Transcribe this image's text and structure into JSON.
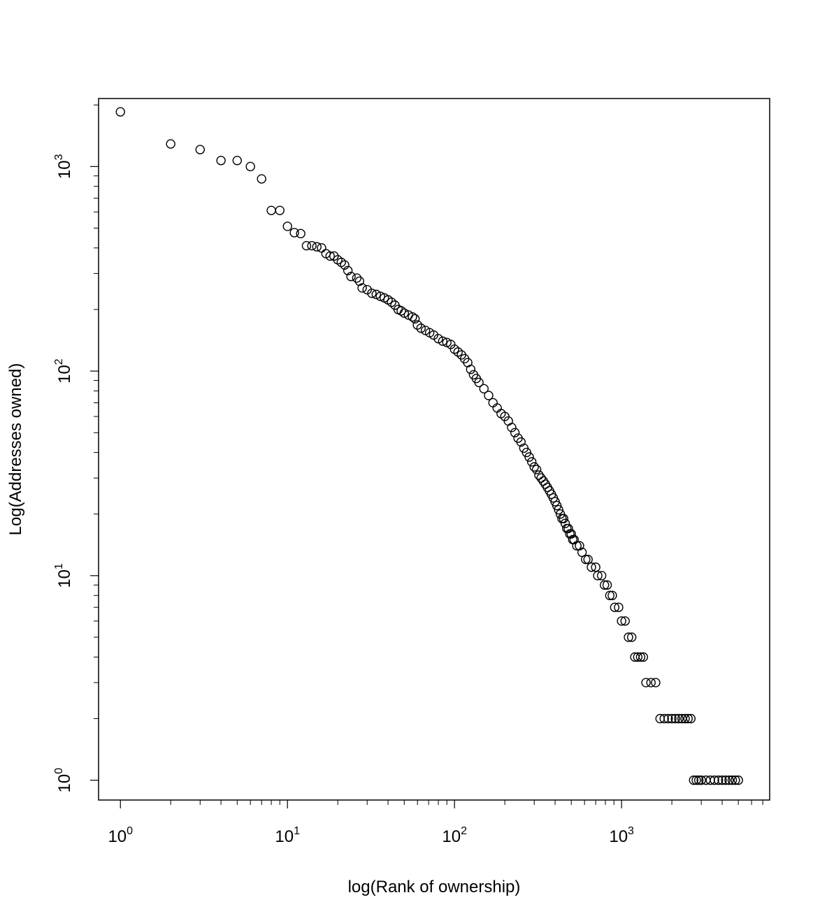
{
  "chart_data": {
    "type": "scatter",
    "title": "",
    "xlabel": "log(Rank of ownership)",
    "ylabel": "Log(Addresses owned)",
    "x_scale": "log10",
    "y_scale": "log10",
    "xlim": [
      0.74,
      7700
    ],
    "ylim": [
      0.8,
      2150
    ],
    "x_ticks": [
      {
        "base": "10",
        "exp": "0",
        "value": 1
      },
      {
        "base": "10",
        "exp": "1",
        "value": 10
      },
      {
        "base": "10",
        "exp": "2",
        "value": 100
      },
      {
        "base": "10",
        "exp": "3",
        "value": 1000
      }
    ],
    "x_minor_ticks": [
      2,
      3,
      4,
      5,
      6,
      7,
      8,
      9,
      20,
      30,
      40,
      50,
      60,
      70,
      80,
      90,
      200,
      300,
      400,
      500,
      600,
      700,
      800,
      900,
      2000,
      3000,
      4000,
      5000,
      6000,
      7000
    ],
    "y_ticks": [
      {
        "base": "10",
        "exp": "0",
        "value": 1
      },
      {
        "base": "10",
        "exp": "1",
        "value": 10
      },
      {
        "base": "10",
        "exp": "2",
        "value": 100
      },
      {
        "base": "10",
        "exp": "3",
        "value": 1000
      }
    ],
    "y_minor_ticks": [
      2,
      3,
      4,
      5,
      6,
      7,
      8,
      9,
      20,
      30,
      40,
      50,
      60,
      70,
      80,
      90,
      200,
      300,
      400,
      500,
      600,
      700,
      800,
      900,
      2000
    ],
    "marker": "open-circle",
    "grid": false,
    "points": [
      [
        1,
        1850
      ],
      [
        2,
        1290
      ],
      [
        3,
        1210
      ],
      [
        4,
        1070
      ],
      [
        5,
        1070
      ],
      [
        6,
        1000
      ],
      [
        7,
        870
      ],
      [
        8,
        610
      ],
      [
        9,
        610
      ],
      [
        10,
        510
      ],
      [
        11,
        475
      ],
      [
        12,
        470
      ],
      [
        13,
        410
      ],
      [
        14,
        410
      ],
      [
        15,
        405
      ],
      [
        16,
        400
      ],
      [
        17,
        375
      ],
      [
        18,
        365
      ],
      [
        19,
        365
      ],
      [
        20,
        350
      ],
      [
        21,
        340
      ],
      [
        22,
        330
      ],
      [
        23,
        310
      ],
      [
        24,
        290
      ],
      [
        26,
        285
      ],
      [
        27,
        275
      ],
      [
        28,
        255
      ],
      [
        30,
        250
      ],
      [
        32,
        240
      ],
      [
        34,
        237
      ],
      [
        36,
        232
      ],
      [
        38,
        228
      ],
      [
        40,
        223
      ],
      [
        42,
        217
      ],
      [
        44,
        210
      ],
      [
        46,
        200
      ],
      [
        48,
        197
      ],
      [
        50,
        192
      ],
      [
        53,
        188
      ],
      [
        56,
        184
      ],
      [
        58,
        180
      ],
      [
        60,
        168
      ],
      [
        63,
        162
      ],
      [
        67,
        158
      ],
      [
        71,
        154
      ],
      [
        75,
        150
      ],
      [
        80,
        144
      ],
      [
        85,
        140
      ],
      [
        90,
        138
      ],
      [
        95,
        135
      ],
      [
        100,
        128
      ],
      [
        105,
        124
      ],
      [
        110,
        120
      ],
      [
        115,
        115
      ],
      [
        120,
        110
      ],
      [
        125,
        102
      ],
      [
        130,
        96
      ],
      [
        135,
        92
      ],
      [
        140,
        88
      ],
      [
        150,
        82
      ],
      [
        160,
        76
      ],
      [
        170,
        70
      ],
      [
        180,
        66
      ],
      [
        190,
        62
      ],
      [
        200,
        60
      ],
      [
        210,
        57
      ],
      [
        220,
        53
      ],
      [
        230,
        50
      ],
      [
        240,
        47
      ],
      [
        250,
        45
      ],
      [
        260,
        42
      ],
      [
        270,
        40
      ],
      [
        280,
        38
      ],
      [
        290,
        36
      ],
      [
        300,
        34
      ],
      [
        310,
        33
      ],
      [
        320,
        31
      ],
      [
        330,
        30
      ],
      [
        340,
        29
      ],
      [
        350,
        28
      ],
      [
        360,
        27
      ],
      [
        370,
        26
      ],
      [
        380,
        25
      ],
      [
        390,
        24
      ],
      [
        400,
        23
      ],
      [
        410,
        22
      ],
      [
        420,
        21
      ],
      [
        430,
        20
      ],
      [
        440,
        19
      ],
      [
        450,
        19
      ],
      [
        460,
        18
      ],
      [
        470,
        17
      ],
      [
        480,
        17
      ],
      [
        490,
        16
      ],
      [
        500,
        16
      ],
      [
        510,
        15
      ],
      [
        520,
        15
      ],
      [
        540,
        14
      ],
      [
        560,
        14
      ],
      [
        580,
        13
      ],
      [
        610,
        12
      ],
      [
        630,
        12
      ],
      [
        660,
        11
      ],
      [
        700,
        11
      ],
      [
        720,
        10
      ],
      [
        760,
        10
      ],
      [
        790,
        9
      ],
      [
        820,
        9
      ],
      [
        850,
        8
      ],
      [
        880,
        8
      ],
      [
        910,
        7
      ],
      [
        960,
        7
      ],
      [
        1000,
        6
      ],
      [
        1050,
        6
      ],
      [
        1100,
        5
      ],
      [
        1150,
        5
      ],
      [
        1200,
        4
      ],
      [
        1250,
        4
      ],
      [
        1300,
        4
      ],
      [
        1350,
        4
      ],
      [
        1400,
        3
      ],
      [
        1500,
        3
      ],
      [
        1600,
        3
      ],
      [
        1700,
        2
      ],
      [
        1800,
        2
      ],
      [
        1900,
        2
      ],
      [
        2000,
        2
      ],
      [
        2100,
        2
      ],
      [
        2200,
        2
      ],
      [
        2300,
        2
      ],
      [
        2400,
        2
      ],
      [
        2500,
        2
      ],
      [
        2600,
        2
      ],
      [
        2700,
        1
      ],
      [
        2800,
        1
      ],
      [
        2900,
        1
      ],
      [
        3000,
        1
      ],
      [
        3200,
        1
      ],
      [
        3400,
        1
      ],
      [
        3600,
        1
      ],
      [
        3800,
        1
      ],
      [
        4000,
        1
      ],
      [
        4200,
        1
      ],
      [
        4400,
        1
      ],
      [
        4600,
        1
      ],
      [
        4800,
        1
      ],
      [
        5000,
        1
      ]
    ]
  }
}
